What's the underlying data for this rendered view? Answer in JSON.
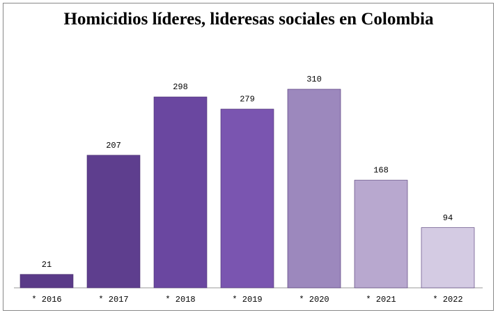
{
  "chart_data": {
    "type": "bar",
    "title": "Homicidios líderes, lideresas sociales en Colombia",
    "categories": [
      "* 2016",
      "* 2017",
      "* 2018",
      "* 2019",
      "* 2020",
      "* 2021",
      "* 2022"
    ],
    "values": [
      21,
      207,
      298,
      279,
      310,
      168,
      94
    ],
    "colors": [
      "#5a3a88",
      "#5e3e8e",
      "#6a47a0",
      "#7a55b0",
      "#9c88bd",
      "#b8a8cf",
      "#d4cbe3"
    ]
  }
}
